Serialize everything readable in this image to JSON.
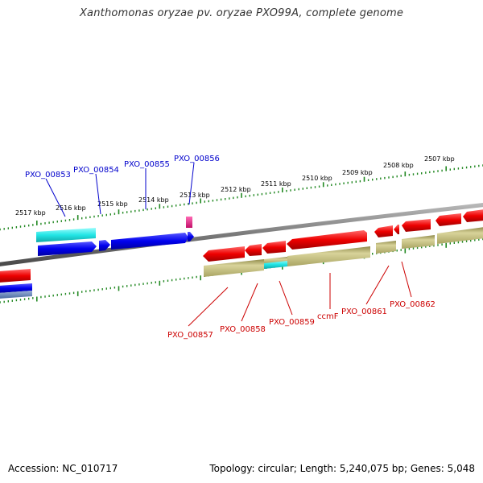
{
  "title": "Xanthomonas oryzae pv. oryzae PXO99A, complete genome",
  "footer": {
    "accession": "Accession: NC_010717",
    "summary": "Topology: circular; Length: 5,240,075 bp; Genes: 5,048"
  },
  "colors": {
    "forward_cds": "#0000ee",
    "reverse_cds": "#ee0000",
    "cyan": "#22e5e5",
    "khaki": "#bdb76b",
    "magenta": "#ee1188",
    "tick": "#228822",
    "backbone": "#808080",
    "label_forward": "#0000cc",
    "label_reverse": "#cc0000"
  },
  "ticks": [
    "2517 kbp",
    "2516 kbp",
    "2515 kbp",
    "2514 kbp",
    "2513 kbp",
    "2512 kbp",
    "2511 kbp",
    "2510 kbp",
    "2509 kbp",
    "2508 kbp",
    "2507 kbp"
  ],
  "genes_forward": [
    "PXO_00853",
    "PXO_00854",
    "PXO_00855",
    "PXO_00856"
  ],
  "genes_reverse": [
    "PXO_00857",
    "PXO_00858",
    "PXO_00859",
    "ccmF",
    "PXO_00861",
    "PXO_00862"
  ]
}
